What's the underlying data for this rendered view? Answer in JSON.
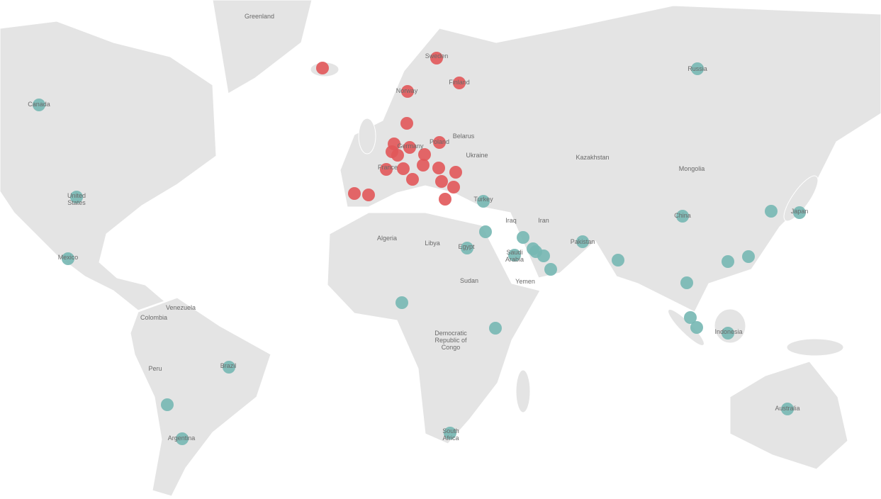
{
  "map": {
    "labels": [
      "Greenland",
      "Canada",
      "United States",
      "Mexico",
      "Venezuela",
      "Colombia",
      "Peru",
      "Brazil",
      "Argentina",
      "Algeria",
      "Libya",
      "Egypt",
      "Sudan",
      "Democratic Republic of Congo",
      "South Africa",
      "Kazakhstan",
      "Mongolia",
      "Russia",
      "China",
      "Japan",
      "Indonesia",
      "Australia",
      "Iran",
      "Iraq",
      "Saudi Arabia",
      "Yemen",
      "Turkey",
      "Ukraine",
      "Belarus",
      "Poland",
      "Germany",
      "France",
      "Sweden",
      "Finland",
      "Norway",
      "Pakistan"
    ]
  }
}
